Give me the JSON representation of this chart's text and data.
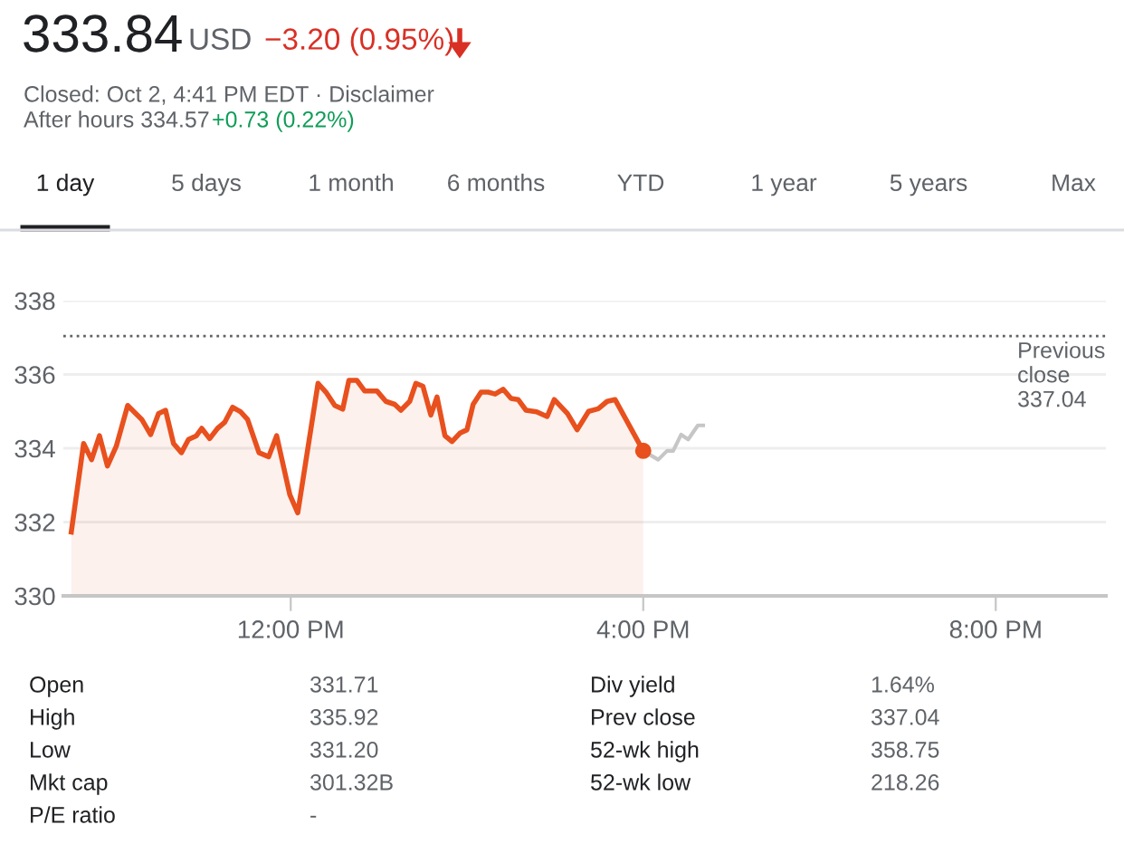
{
  "chart_data": {
    "type": "area",
    "title": "333.84",
    "x": [
      9.51,
      9.65,
      9.74,
      9.83,
      9.92,
      10.02,
      10.15,
      10.31,
      10.41,
      10.5,
      10.58,
      10.67,
      10.76,
      10.84,
      10.93,
      10.99,
      11.08,
      11.17,
      11.25,
      11.34,
      11.43,
      11.51,
      11.64,
      11.75,
      11.84,
      11.99,
      12.08,
      12.31,
      12.4,
      12.5,
      12.59,
      12.66,
      12.75,
      12.84,
      12.98,
      13.08,
      13.18,
      13.25,
      13.35,
      13.42,
      13.5,
      13.59,
      13.66,
      13.75,
      13.83,
      13.92,
      14.0,
      14.07,
      14.16,
      14.24,
      14.32,
      14.41,
      14.5,
      14.58,
      14.67,
      14.79,
      14.91,
      14.99,
      15.14,
      15.25,
      15.38,
      15.49,
      15.59,
      15.68,
      16.0
    ],
    "series": [
      {
        "color": "#e8501e",
        "values": [
          331.73,
          334.13,
          333.69,
          334.34,
          333.52,
          334.05,
          335.16,
          334.78,
          334.37,
          334.94,
          335.03,
          334.13,
          333.88,
          334.24,
          334.34,
          334.54,
          334.26,
          334.54,
          334.7,
          335.11,
          334.99,
          334.78,
          333.88,
          333.77,
          334.34,
          332.74,
          332.25,
          335.76,
          335.52,
          335.16,
          335.06,
          335.84,
          335.84,
          335.55,
          335.55,
          335.27,
          335.19,
          335.03,
          335.27,
          335.76,
          335.68,
          334.9,
          335.39,
          334.34,
          334.18,
          334.41,
          334.5,
          335.19,
          335.52,
          335.52,
          335.47,
          335.6,
          335.35,
          335.32,
          335.03,
          334.99,
          334.86,
          335.32,
          334.94,
          334.5,
          335.0,
          335.07,
          335.27,
          335.32,
          333.93
        ]
      },
      {
        "type": "scatter",
        "color": "#e8501e",
        "x": [
          16.0
        ],
        "values": [
          333.93
        ]
      },
      {
        "type": "line",
        "color": "#c6c6c6",
        "x": [
          16.0,
          16.17,
          16.27,
          16.34,
          16.43,
          16.51,
          16.62,
          16.68
        ],
        "values": [
          333.93,
          333.69,
          333.93,
          333.93,
          334.37,
          334.24,
          334.62,
          334.62
        ]
      }
    ],
    "xlim": [
      9.42,
      21.25
    ],
    "xticks": [
      {
        "value": 12,
        "label": "12:00 PM"
      },
      {
        "value": 16,
        "label": "4:00 PM"
      },
      {
        "value": 20,
        "label": "8:00 PM"
      }
    ],
    "ylim": [
      330,
      338
    ],
    "yticks": [
      330,
      332,
      334,
      336,
      338
    ],
    "grid": "y",
    "legend": false,
    "ref_lines": [
      {
        "axis": "y",
        "value": 337.04,
        "label": "Previous\nclose\n337.04",
        "color": "#5f6368",
        "line_style": "dotted"
      }
    ],
    "annotations": [
      "USD",
      "−3.20 (0.95%)",
      "Closed: Oct 2, 4:41 PM EDT · Disclaimer",
      "After hours 334.57",
      "+0.73 (0.22%)",
      "1 day",
      "5 days",
      "1 month",
      "6 months",
      "YTD",
      "1 year",
      "5 years",
      "Max",
      "Open",
      "331.71",
      "Div yield",
      "1.64%",
      "High",
      "335.92",
      "Prev close",
      "337.04",
      "Low",
      "331.20",
      "52-wk high",
      "358.75",
      "Mkt cap",
      "301.32B",
      "52-wk low",
      "218.26",
      "P/E ratio",
      "-"
    ]
  }
}
